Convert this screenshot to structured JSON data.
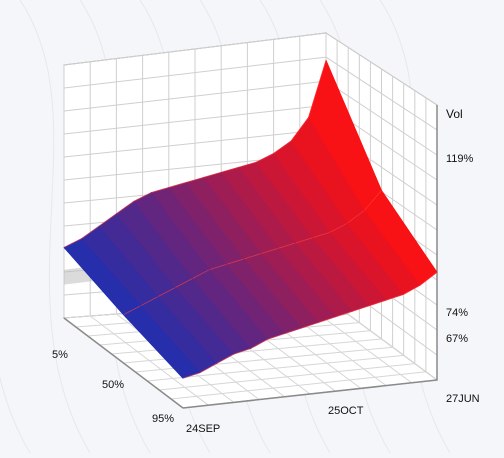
{
  "chart_data": {
    "type": "surface",
    "title": "",
    "zlabel": "Vol",
    "z_ticks": [
      "67%",
      "74%",
      "119%"
    ],
    "z_range": [
      55,
      125
    ],
    "x_axis": {
      "name": "",
      "ticks": [
        "5%",
        "50%",
        "95%"
      ]
    },
    "y_axis": {
      "name": "",
      "ticks": [
        "24SEP",
        "25OCT",
        "27JUN"
      ]
    },
    "grid": true,
    "colorscale": [
      "#1e2fb0",
      "#ff1010"
    ],
    "rows": [
      {
        "strike": "5%",
        "vols": [
          74,
          76,
          79,
          82,
          85,
          87,
          88,
          89,
          90,
          91,
          92,
          93,
          95,
          98,
          104,
          119
        ]
      },
      {
        "strike": "50%",
        "vols": [
          68,
          70,
          72,
          74,
          76,
          78,
          79,
          80,
          81,
          82,
          83,
          84,
          85,
          87,
          90,
          95
        ]
      },
      {
        "strike": "95%",
        "vols": [
          63,
          64,
          66,
          68,
          69,
          71,
          72,
          73,
          74,
          75,
          76,
          77,
          78,
          79,
          81,
          84
        ]
      }
    ]
  }
}
